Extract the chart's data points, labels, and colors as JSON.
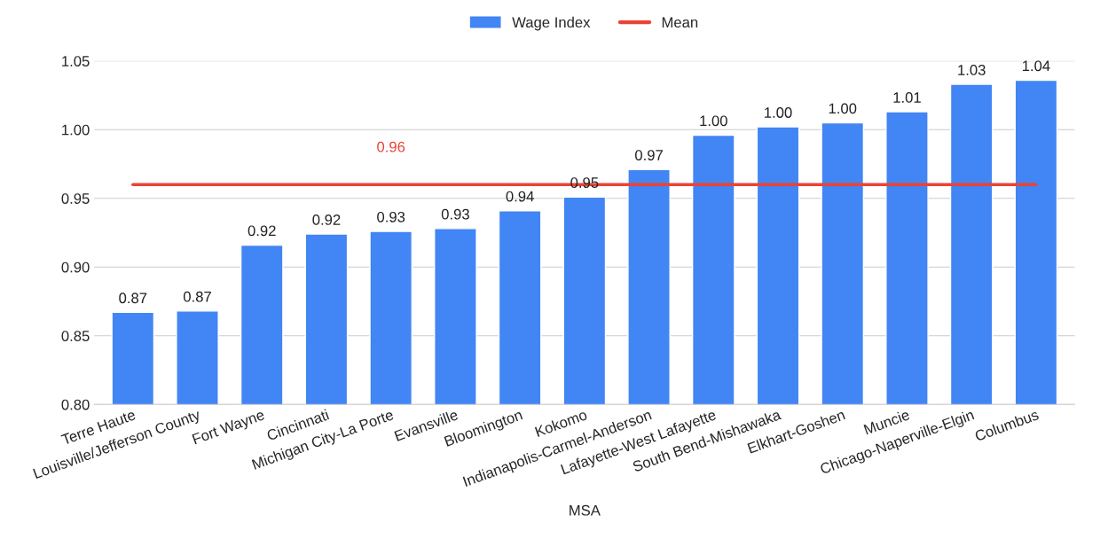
{
  "chart_data": {
    "type": "bar",
    "xlabel": "MSA",
    "categories": [
      "Terre Haute",
      "Louisville/Jefferson County",
      "Fort Wayne",
      "Cincinnati",
      "Michigan City-La Porte",
      "Evansville",
      "Bloomington",
      "Kokomo",
      "Indianapolis-Carmel-Anderson",
      "Lafayette-West Lafayette",
      "South Bend-Mishawaka",
      "Elkhart-Goshen",
      "Muncie",
      "Chicago-Naperville-Elgin",
      "Columbus"
    ],
    "series": [
      {
        "name": "Wage Index",
        "color": "#4285f4",
        "values": [
          0.867,
          0.868,
          0.916,
          0.924,
          0.926,
          0.928,
          0.941,
          0.951,
          0.971,
          0.996,
          1.002,
          1.005,
          1.013,
          1.033,
          1.036
        ],
        "value_labels": [
          "0.87",
          "0.87",
          "0.92",
          "0.92",
          "0.93",
          "0.93",
          "0.94",
          "0.95",
          "0.97",
          "1.00",
          "1.00",
          "1.00",
          "1.01",
          "1.03",
          "1.04"
        ]
      },
      {
        "name": "Mean",
        "type": "line",
        "color": "#ea4335",
        "values": [
          0.96,
          0.96,
          0.96,
          0.96,
          0.96,
          0.96,
          0.96,
          0.96,
          0.96,
          0.96,
          0.96,
          0.96,
          0.96,
          0.96,
          0.96
        ],
        "value_labels": [
          null,
          null,
          null,
          null,
          "0.96",
          null,
          null,
          null,
          null,
          null,
          null,
          null,
          null,
          null,
          null
        ]
      }
    ],
    "ylim": [
      0.8,
      1.05
    ],
    "yticks": [
      "0.80",
      "0.85",
      "0.90",
      "0.95",
      "1.00",
      "1.05"
    ],
    "grid": "y",
    "legend": "top"
  }
}
